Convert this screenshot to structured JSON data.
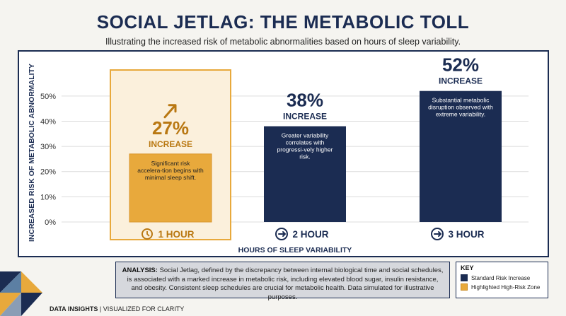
{
  "title": "SOCIAL JETLAG: THE METABOLIC TOLL",
  "subtitle": "Illustrating the increased risk of metabolic abnormalities based on hours of sleep variability.",
  "chart_data": {
    "type": "bar",
    "categories": [
      "1 HOUR",
      "2 HOUR",
      "3 HOUR"
    ],
    "values": [
      27,
      38,
      52
    ],
    "value_labels": [
      "27%",
      "38%",
      "52%"
    ],
    "value_sublabel": "INCREASE",
    "annotations": [
      "Significant risk accelera-tion begins with minimal sleep shift.",
      "Greater variability correlates with progressi-vely higher risk.",
      "Substantial metabolic disruption observed with extreme variability."
    ],
    "highlighted_index": 0,
    "ylabel": "INCREASED RISK OF METABOLIC ABNORMALITY",
    "xlabel": "HOURS OF SLEEP VARIABILITY",
    "ylim": [
      0,
      55
    ],
    "yticks": [
      "0%",
      "10%",
      "20%",
      "30%",
      "40%",
      "50%"
    ],
    "ytick_values": [
      0,
      10,
      20,
      30,
      40,
      50
    ],
    "grid": true,
    "colors": {
      "standard": "#1b2c52",
      "highlight": "#e8a93c",
      "highlight_text": "#b97812"
    }
  },
  "analysis": {
    "label": "ANALYSIS:",
    "text": "Social Jetlag, defined by the discrepancy between internal biological time and social schedules, is associated with a marked increase in metabolic risk, including elevated blood sugar, insulin resistance, and obesity. Consistent sleep schedules are crucial for metabolic health. Data simulated for illustrative purposes."
  },
  "key": {
    "title": "KEY",
    "standard": "Standard Risk Increase",
    "highlight": "Highlighted High-Risk Zone"
  },
  "footer": {
    "brand": "DATA INSIGHTS",
    "separator": "|",
    "tagline": "VISUALIZED FOR CLARITY"
  }
}
